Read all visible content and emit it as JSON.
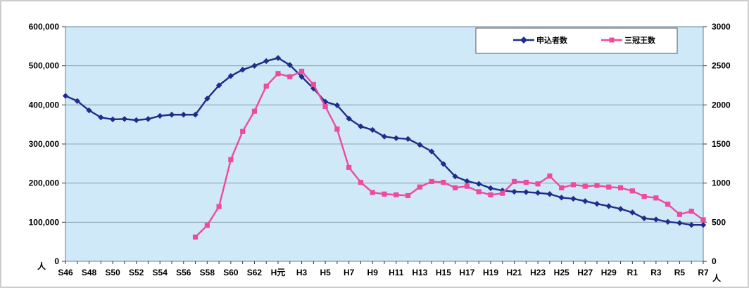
{
  "chart_data": {
    "type": "line",
    "title": "",
    "x": [
      "S46",
      "S47",
      "S48",
      "S49",
      "S50",
      "S51",
      "S52",
      "S53",
      "S54",
      "S55",
      "S56",
      "S57",
      "S58",
      "S59",
      "S60",
      "S61",
      "S62",
      "S63",
      "H元",
      "H2",
      "H3",
      "H4",
      "H5",
      "H6",
      "H7",
      "H8",
      "H9",
      "H10",
      "H11",
      "H12",
      "H13",
      "H14",
      "H15",
      "H16",
      "H17",
      "H18",
      "H19",
      "H20",
      "H21",
      "H22",
      "H23",
      "H24",
      "H25",
      "H26",
      "H27",
      "H28",
      "H29",
      "H30",
      "R1",
      "R2",
      "R3",
      "R4",
      "R5",
      "R6",
      "R7"
    ],
    "x_tick_labels": [
      "S46",
      "S48",
      "S50",
      "S52",
      "S54",
      "S56",
      "S58",
      "S60",
      "S62",
      "H元",
      "H3",
      "H5",
      "H7",
      "H9",
      "H11",
      "H13",
      "H15",
      "H17",
      "H19",
      "H21",
      "H23",
      "H25",
      "H27",
      "H29",
      "R1",
      "R3",
      "R5",
      "R7"
    ],
    "y_left": {
      "range": [
        0,
        600000
      ],
      "ticks": [
        "0",
        "100,000",
        "200,000",
        "300,000",
        "400,000",
        "500,000",
        "600,000"
      ],
      "unit": "人"
    },
    "y_right": {
      "range": [
        0,
        3000
      ],
      "ticks": [
        "0",
        "500",
        "1000",
        "1500",
        "2000",
        "2500",
        "3000"
      ],
      "unit": "人"
    },
    "grid": true,
    "legend_position": "top-right",
    "series": [
      {
        "name": "申込者数",
        "axis": "left",
        "color": "#1f2d8a",
        "marker": "diamond",
        "values": [
          423000,
          410000,
          386000,
          368000,
          363000,
          364000,
          361000,
          364000,
          372000,
          375000,
          375000,
          375000,
          416000,
          450000,
          474000,
          490000,
          500000,
          512000,
          520000,
          502000,
          472000,
          442000,
          408000,
          399000,
          365000,
          345000,
          336000,
          319000,
          315000,
          313000,
          298000,
          281000,
          249000,
          217000,
          205000,
          198000,
          187000,
          181000,
          178000,
          177000,
          175000,
          172000,
          163000,
          160000,
          154000,
          147000,
          141000,
          134000,
          125000,
          110000,
          107000,
          101000,
          98000,
          93000,
          93000
        ]
      },
      {
        "name": "三冠王数",
        "axis": "right",
        "color": "#ee4aa0",
        "marker": "square",
        "values": [
          null,
          null,
          null,
          null,
          null,
          null,
          null,
          null,
          null,
          null,
          null,
          310,
          460,
          700,
          1300,
          1660,
          1920,
          2240,
          2400,
          2360,
          2430,
          2260,
          1980,
          1690,
          1200,
          1010,
          880,
          860,
          850,
          840,
          950,
          1020,
          1010,
          940,
          960,
          890,
          850,
          870,
          1020,
          1010,
          990,
          1090,
          940,
          980,
          960,
          970,
          950,
          940,
          900,
          830,
          810,
          730,
          600,
          640,
          530
        ]
      }
    ]
  }
}
